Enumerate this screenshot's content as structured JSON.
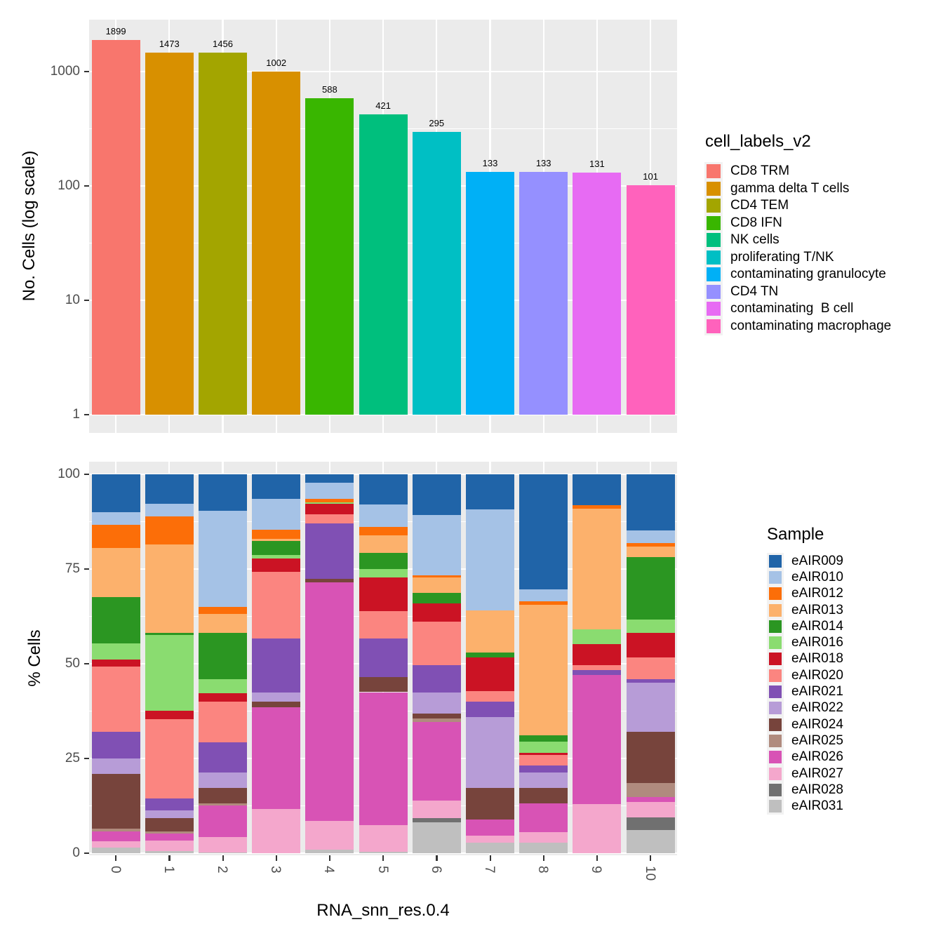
{
  "style": {
    "panel_background": "#EBEBEB",
    "grid_color": "#FFFFFF",
    "tick_label_color": "#4D4D4D",
    "tick_mark_color": "#333333",
    "text_color": "#000000",
    "page_background": "#FFFFFF"
  },
  "chart_data": [
    {
      "type": "bar",
      "y_axis_title": "No. Cells (log scale)",
      "y_scale": "log",
      "y_ticks": [
        1000,
        100,
        10,
        1
      ],
      "categories": [
        "0",
        "1",
        "2",
        "3",
        "4",
        "5",
        "6",
        "7",
        "8",
        "9",
        "10"
      ],
      "values": [
        1899,
        1473,
        1456,
        1002,
        588,
        421,
        295,
        133,
        133,
        131,
        101
      ],
      "bar_value_labels": [
        "1899",
        "1473",
        "1456",
        "1002",
        "588",
        "421",
        "295",
        "133",
        "133",
        "131",
        "101"
      ],
      "cluster_cell_labels": [
        "CD8 TRM",
        "gamma delta T cells",
        "CD4 TEM",
        "gamma delta T cells",
        "CD8 IFN",
        "NK cells",
        "proliferating T/NK",
        "contaminating granulocyte",
        "CD4 TN",
        "contaminating  B cell",
        "contaminating macrophage"
      ],
      "legend_title": "cell_labels_v2",
      "legend": [
        {
          "label": "CD8 TRM",
          "color": "#F8766D"
        },
        {
          "label": "gamma delta T cells",
          "color": "#D89000"
        },
        {
          "label": "CD4 TEM",
          "color": "#A3A500"
        },
        {
          "label": "CD8 IFN",
          "color": "#39B600"
        },
        {
          "label": "NK cells",
          "color": "#00BF7D"
        },
        {
          "label": "proliferating T/NK",
          "color": "#00BFC4"
        },
        {
          "label": "contaminating granulocyte",
          "color": "#00B0F6"
        },
        {
          "label": "CD4 TN",
          "color": "#9590FF"
        },
        {
          "label": "contaminating  B cell",
          "color": "#E76BF3"
        },
        {
          "label": "contaminating macrophage",
          "color": "#FF62BC"
        }
      ]
    },
    {
      "type": "stacked-bar",
      "unit": "percent",
      "x_axis_title": "RNA_snn_res.0.4",
      "y_axis_title": "% Cells",
      "y_ticks": [
        0,
        25,
        50,
        75,
        100
      ],
      "categories": [
        "0",
        "1",
        "2",
        "3",
        "4",
        "5",
        "6",
        "7",
        "8",
        "9",
        "10"
      ],
      "ylim": [
        0,
        100
      ],
      "legend_title": "Sample",
      "samples": [
        {
          "name": "eAIR009",
          "color": "#2064A8"
        },
        {
          "name": "eAIR010",
          "color": "#A5C2E6"
        },
        {
          "name": "eAIR012",
          "color": "#FC6E08"
        },
        {
          "name": "eAIR013",
          "color": "#FCB16C"
        },
        {
          "name": "eAIR014",
          "color": "#2B9622"
        },
        {
          "name": "eAIR016",
          "color": "#8ADC70"
        },
        {
          "name": "eAIR018",
          "color": "#CB1324"
        },
        {
          "name": "eAIR020",
          "color": "#FB8580"
        },
        {
          "name": "eAIR021",
          "color": "#8050B4"
        },
        {
          "name": "eAIR022",
          "color": "#B79CD7"
        },
        {
          "name": "eAIR024",
          "color": "#77443C"
        },
        {
          "name": "eAIR025",
          "color": "#B08B7E"
        },
        {
          "name": "eAIR026",
          "color": "#D853B5"
        },
        {
          "name": "eAIR027",
          "color": "#F4A7CC"
        },
        {
          "name": "eAIR028",
          "color": "#707070"
        },
        {
          "name": "eAIR031",
          "color": "#BFBFBF"
        }
      ],
      "bars": [
        {
          "category": "0",
          "segments_bottom_to_top": [
            [
              "eAIR031",
              1.5
            ],
            [
              "eAIR027",
              1.6
            ],
            [
              "eAIR026",
              2.6
            ],
            [
              "eAIR025",
              0.7
            ],
            [
              "eAIR024",
              14.5
            ],
            [
              "eAIR022",
              4.1
            ],
            [
              "eAIR021",
              7.0
            ],
            [
              "eAIR020",
              17.3
            ],
            [
              "eAIR018",
              1.8
            ],
            [
              "eAIR016",
              4.3
            ],
            [
              "eAIR014",
              12.2
            ],
            [
              "eAIR013",
              12.9
            ],
            [
              "eAIR012",
              6.2
            ],
            [
              "eAIR010",
              3.3
            ],
            [
              "eAIR009",
              10.0
            ]
          ]
        },
        {
          "category": "1",
          "segments_bottom_to_top": [
            [
              "eAIR031",
              0.5
            ],
            [
              "eAIR027",
              2.8
            ],
            [
              "eAIR026",
              1.9
            ],
            [
              "eAIR025",
              0.5
            ],
            [
              "eAIR024",
              3.6
            ],
            [
              "eAIR022",
              2.0
            ],
            [
              "eAIR021",
              3.1
            ],
            [
              "eAIR020",
              21.0
            ],
            [
              "eAIR018",
              2.2
            ],
            [
              "eAIR016",
              20.0
            ],
            [
              "eAIR014",
              0.6
            ],
            [
              "eAIR013",
              23.2
            ],
            [
              "eAIR012",
              7.5
            ],
            [
              "eAIR010",
              3.3
            ],
            [
              "eAIR009",
              7.8
            ]
          ]
        },
        {
          "category": "2",
          "segments_bottom_to_top": [
            [
              "eAIR031",
              0.2
            ],
            [
              "eAIR027",
              4.1
            ],
            [
              "eAIR026",
              8.3
            ],
            [
              "eAIR025",
              0.5
            ],
            [
              "eAIR024",
              4.1
            ],
            [
              "eAIR022",
              4.1
            ],
            [
              "eAIR021",
              8.0
            ],
            [
              "eAIR020",
              10.7
            ],
            [
              "eAIR018",
              2.2
            ],
            [
              "eAIR016",
              3.7
            ],
            [
              "eAIR014",
              12.3
            ],
            [
              "eAIR013",
              5.0
            ],
            [
              "eAIR012",
              1.8
            ],
            [
              "eAIR010",
              25.4
            ],
            [
              "eAIR009",
              9.6
            ]
          ]
        },
        {
          "category": "3",
          "segments_bottom_to_top": [
            [
              "eAIR027",
              11.7
            ],
            [
              "eAIR026",
              26.8
            ],
            [
              "eAIR024",
              1.5
            ],
            [
              "eAIR022",
              2.4
            ],
            [
              "eAIR021",
              14.3
            ],
            [
              "eAIR020",
              17.6
            ],
            [
              "eAIR018",
              3.5
            ],
            [
              "eAIR016",
              0.9
            ],
            [
              "eAIR014",
              3.7
            ],
            [
              "eAIR013",
              0.6
            ],
            [
              "eAIR012",
              2.4
            ],
            [
              "eAIR010",
              8.1
            ],
            [
              "eAIR009",
              6.5
            ]
          ]
        },
        {
          "category": "4",
          "segments_bottom_to_top": [
            [
              "eAIR031",
              0.9
            ],
            [
              "eAIR027",
              7.6
            ],
            [
              "eAIR026",
              63.0
            ],
            [
              "eAIR024",
              0.9
            ],
            [
              "eAIR021",
              14.6
            ],
            [
              "eAIR020",
              2.4
            ],
            [
              "eAIR018",
              2.8
            ],
            [
              "eAIR016",
              0.4
            ],
            [
              "eAIR012",
              0.9
            ],
            [
              "eAIR010",
              4.3
            ],
            [
              "eAIR009",
              2.2
            ]
          ]
        },
        {
          "category": "5",
          "segments_bottom_to_top": [
            [
              "eAIR031",
              0.3
            ],
            [
              "eAIR027",
              7.1
            ],
            [
              "eAIR026",
              35.1
            ],
            [
              "eAIR024",
              4.0
            ],
            [
              "eAIR021",
              10.2
            ],
            [
              "eAIR020",
              7.1
            ],
            [
              "eAIR018",
              9.0
            ],
            [
              "eAIR016",
              2.2
            ],
            [
              "eAIR014",
              4.3
            ],
            [
              "eAIR013",
              4.6
            ],
            [
              "eAIR012",
              2.2
            ],
            [
              "eAIR010",
              5.9
            ],
            [
              "eAIR009",
              8.0
            ]
          ]
        },
        {
          "category": "6",
          "segments_bottom_to_top": [
            [
              "eAIR031",
              8.2
            ],
            [
              "eAIR028",
              1.1
            ],
            [
              "eAIR027",
              4.6
            ],
            [
              "eAIR026",
              20.8
            ],
            [
              "eAIR025",
              0.9
            ],
            [
              "eAIR024",
              1.2
            ],
            [
              "eAIR022",
              5.6
            ],
            [
              "eAIR021",
              7.3
            ],
            [
              "eAIR020",
              11.5
            ],
            [
              "eAIR018",
              4.7
            ],
            [
              "eAIR014",
              2.8
            ],
            [
              "eAIR013",
              4.1
            ],
            [
              "eAIR012",
              0.6
            ],
            [
              "eAIR010",
              15.8
            ],
            [
              "eAIR009",
              10.8
            ]
          ]
        },
        {
          "category": "7",
          "segments_bottom_to_top": [
            [
              "eAIR031",
              2.8
            ],
            [
              "eAIR027",
              1.8
            ],
            [
              "eAIR026",
              4.3
            ],
            [
              "eAIR024",
              8.3
            ],
            [
              "eAIR022",
              18.8
            ],
            [
              "eAIR021",
              4.0
            ],
            [
              "eAIR020",
              2.8
            ],
            [
              "eAIR018",
              8.9
            ],
            [
              "eAIR014",
              1.3
            ],
            [
              "eAIR013",
              11.0
            ],
            [
              "eAIR010",
              26.8
            ],
            [
              "eAIR009",
              9.2
            ]
          ]
        },
        {
          "category": "8",
          "segments_bottom_to_top": [
            [
              "eAIR031",
              2.8
            ],
            [
              "eAIR027",
              2.7
            ],
            [
              "eAIR026",
              7.6
            ],
            [
              "eAIR024",
              4.1
            ],
            [
              "eAIR022",
              4.1
            ],
            [
              "eAIR021",
              1.8
            ],
            [
              "eAIR020",
              2.8
            ],
            [
              "eAIR018",
              0.6
            ],
            [
              "eAIR016",
              3.0
            ],
            [
              "eAIR014",
              1.7
            ],
            [
              "eAIR013",
              34.4
            ],
            [
              "eAIR012",
              0.9
            ],
            [
              "eAIR010",
              3.1
            ],
            [
              "eAIR009",
              30.4
            ]
          ]
        },
        {
          "category": "9",
          "segments_bottom_to_top": [
            [
              "eAIR027",
              13.0
            ],
            [
              "eAIR026",
              34.0
            ],
            [
              "eAIR021",
              1.3
            ],
            [
              "eAIR020",
              1.3
            ],
            [
              "eAIR018",
              5.6
            ],
            [
              "eAIR016",
              3.9
            ],
            [
              "eAIR013",
              31.9
            ],
            [
              "eAIR012",
              0.9
            ],
            [
              "eAIR009",
              8.1
            ]
          ]
        },
        {
          "category": "10",
          "segments_bottom_to_top": [
            [
              "eAIR031",
              6.1
            ],
            [
              "eAIR028",
              3.3
            ],
            [
              "eAIR027",
              4.1
            ],
            [
              "eAIR026",
              1.3
            ],
            [
              "eAIR025",
              3.7
            ],
            [
              "eAIR024",
              13.5
            ],
            [
              "eAIR022",
              13.0
            ],
            [
              "eAIR021",
              0.9
            ],
            [
              "eAIR020",
              5.8
            ],
            [
              "eAIR018",
              6.5
            ],
            [
              "eAIR016",
              3.5
            ],
            [
              "eAIR014",
              16.4
            ],
            [
              "eAIR013",
              2.8
            ],
            [
              "eAIR012",
              0.9
            ],
            [
              "eAIR010",
              3.4
            ],
            [
              "eAIR009",
              14.8
            ]
          ]
        }
      ]
    }
  ]
}
